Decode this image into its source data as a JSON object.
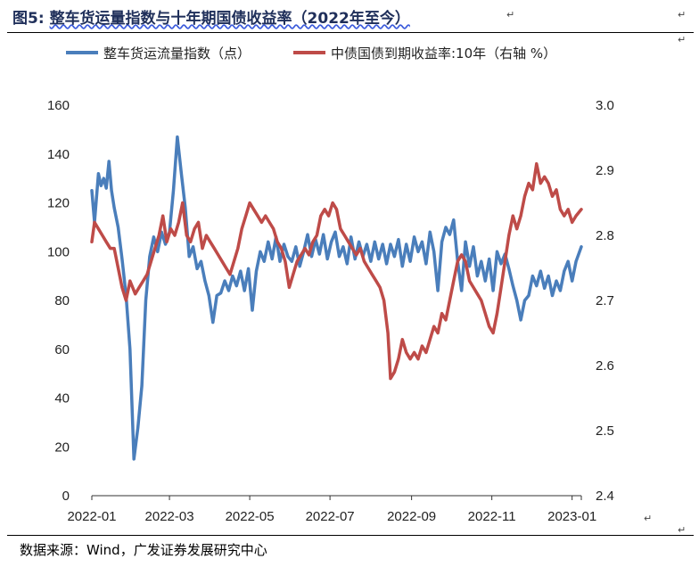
{
  "header": {
    "title_prefix": "图5:",
    "title_main": "整车货运量指数与十年期国债收益率（2022年至今）"
  },
  "footer": {
    "source": "数据来源：Wind，广发证券发展研究中心"
  },
  "marks": {
    "paragraph": "↵"
  },
  "chart_data": {
    "type": "line",
    "title": "整车货运量指数与十年期国债收益率（2022年至今）",
    "x_tick_labels": [
      "2022-01",
      "2022-03",
      "2022-05",
      "2022-07",
      "2022-09",
      "2022-11",
      "2023-01"
    ],
    "x_range": [
      "2022-01-01",
      "2023-01-08"
    ],
    "y_left": {
      "ticks": [
        0,
        20,
        40,
        60,
        80,
        100,
        120,
        140,
        160
      ],
      "range": [
        0,
        160
      ]
    },
    "y_right": {
      "ticks": [
        2.4,
        2.5,
        2.6,
        2.7,
        2.8,
        2.9,
        3.0
      ],
      "range": [
        2.4,
        3.0
      ]
    },
    "grid": false,
    "legend_position": "top",
    "colors": {
      "series1": "#4a7ebb",
      "series2": "#be4b48"
    },
    "series": [
      {
        "name": "整车货运流量指数（点）",
        "axis": "left",
        "points": [
          [
            "2022-01-01",
            125
          ],
          [
            "2022-01-03",
            112
          ],
          [
            "2022-01-06",
            132
          ],
          [
            "2022-01-08",
            127
          ],
          [
            "2022-01-10",
            130
          ],
          [
            "2022-01-12",
            126
          ],
          [
            "2022-01-14",
            137
          ],
          [
            "2022-01-16",
            125
          ],
          [
            "2022-01-18",
            118
          ],
          [
            "2022-01-21",
            110
          ],
          [
            "2022-01-24",
            97
          ],
          [
            "2022-01-27",
            82
          ],
          [
            "2022-01-30",
            60
          ],
          [
            "2022-02-02",
            15
          ],
          [
            "2022-02-05",
            28
          ],
          [
            "2022-02-08",
            45
          ],
          [
            "2022-02-11",
            80
          ],
          [
            "2022-02-14",
            98
          ],
          [
            "2022-02-17",
            106
          ],
          [
            "2022-02-20",
            100
          ],
          [
            "2022-02-23",
            108
          ],
          [
            "2022-02-26",
            103
          ],
          [
            "2022-03-01",
            108
          ],
          [
            "2022-03-04",
            125
          ],
          [
            "2022-03-07",
            147
          ],
          [
            "2022-03-10",
            132
          ],
          [
            "2022-03-13",
            118
          ],
          [
            "2022-03-16",
            98
          ],
          [
            "2022-03-19",
            102
          ],
          [
            "2022-03-22",
            93
          ],
          [
            "2022-03-25",
            96
          ],
          [
            "2022-03-28",
            88
          ],
          [
            "2022-03-31",
            82
          ],
          [
            "2022-04-03",
            71
          ],
          [
            "2022-04-06",
            82
          ],
          [
            "2022-04-09",
            83
          ],
          [
            "2022-04-12",
            88
          ],
          [
            "2022-04-15",
            84
          ],
          [
            "2022-04-18",
            90
          ],
          [
            "2022-04-21",
            86
          ],
          [
            "2022-04-24",
            92
          ],
          [
            "2022-04-27",
            84
          ],
          [
            "2022-04-30",
            93
          ],
          [
            "2022-05-03",
            76
          ],
          [
            "2022-05-06",
            92
          ],
          [
            "2022-05-09",
            100
          ],
          [
            "2022-05-12",
            96
          ],
          [
            "2022-05-15",
            104
          ],
          [
            "2022-05-18",
            97
          ],
          [
            "2022-05-21",
            106
          ],
          [
            "2022-05-24",
            96
          ],
          [
            "2022-05-27",
            103
          ],
          [
            "2022-05-30",
            98
          ],
          [
            "2022-06-02",
            96
          ],
          [
            "2022-06-05",
            102
          ],
          [
            "2022-06-08",
            94
          ],
          [
            "2022-06-11",
            100
          ],
          [
            "2022-06-14",
            107
          ],
          [
            "2022-06-17",
            98
          ],
          [
            "2022-06-20",
            105
          ],
          [
            "2022-06-23",
            99
          ],
          [
            "2022-06-26",
            107
          ],
          [
            "2022-06-29",
            97
          ],
          [
            "2022-07-02",
            104
          ],
          [
            "2022-07-05",
            108
          ],
          [
            "2022-07-08",
            98
          ],
          [
            "2022-07-11",
            102
          ],
          [
            "2022-07-14",
            95
          ],
          [
            "2022-07-17",
            106
          ],
          [
            "2022-07-20",
            97
          ],
          [
            "2022-07-23",
            104
          ],
          [
            "2022-07-26",
            98
          ],
          [
            "2022-07-29",
            103
          ],
          [
            "2022-08-01",
            96
          ],
          [
            "2022-08-04",
            104
          ],
          [
            "2022-08-07",
            97
          ],
          [
            "2022-08-10",
            103
          ],
          [
            "2022-08-13",
            95
          ],
          [
            "2022-08-16",
            103
          ],
          [
            "2022-08-19",
            98
          ],
          [
            "2022-08-22",
            105
          ],
          [
            "2022-08-25",
            94
          ],
          [
            "2022-08-28",
            103
          ],
          [
            "2022-08-31",
            96
          ],
          [
            "2022-09-03",
            106
          ],
          [
            "2022-09-06",
            100
          ],
          [
            "2022-09-09",
            104
          ],
          [
            "2022-09-12",
            95
          ],
          [
            "2022-09-15",
            108
          ],
          [
            "2022-09-18",
            100
          ],
          [
            "2022-09-21",
            84
          ],
          [
            "2022-09-24",
            104
          ],
          [
            "2022-09-27",
            110
          ],
          [
            "2022-09-30",
            107
          ],
          [
            "2022-10-03",
            113
          ],
          [
            "2022-10-06",
            96
          ],
          [
            "2022-10-09",
            84
          ],
          [
            "2022-10-12",
            104
          ],
          [
            "2022-10-15",
            94
          ],
          [
            "2022-10-18",
            102
          ],
          [
            "2022-10-21",
            90
          ],
          [
            "2022-10-24",
            96
          ],
          [
            "2022-10-27",
            88
          ],
          [
            "2022-10-30",
            97
          ],
          [
            "2022-11-02",
            84
          ],
          [
            "2022-11-05",
            100
          ],
          [
            "2022-11-08",
            95
          ],
          [
            "2022-11-11",
            99
          ],
          [
            "2022-11-14",
            93
          ],
          [
            "2022-11-17",
            86
          ],
          [
            "2022-11-20",
            80
          ],
          [
            "2022-11-23",
            72
          ],
          [
            "2022-11-26",
            80
          ],
          [
            "2022-11-29",
            82
          ],
          [
            "2022-12-02",
            90
          ],
          [
            "2022-12-05",
            86
          ],
          [
            "2022-12-08",
            92
          ],
          [
            "2022-12-11",
            85
          ],
          [
            "2022-12-14",
            90
          ],
          [
            "2022-12-17",
            82
          ],
          [
            "2022-12-20",
            88
          ],
          [
            "2022-12-23",
            84
          ],
          [
            "2022-12-26",
            92
          ],
          [
            "2022-12-29",
            96
          ],
          [
            "2023-01-01",
            88
          ],
          [
            "2023-01-04",
            96
          ],
          [
            "2023-01-08",
            102
          ]
        ]
      },
      {
        "name": "中债国债到期收益率:10年（右轴 %）",
        "axis": "right",
        "points": [
          [
            "2022-01-01",
            2.79
          ],
          [
            "2022-01-03",
            2.82
          ],
          [
            "2022-01-06",
            2.81
          ],
          [
            "2022-01-09",
            2.8
          ],
          [
            "2022-01-12",
            2.79
          ],
          [
            "2022-01-15",
            2.78
          ],
          [
            "2022-01-18",
            2.78
          ],
          [
            "2022-01-21",
            2.75
          ],
          [
            "2022-01-24",
            2.72
          ],
          [
            "2022-01-27",
            2.7
          ],
          [
            "2022-01-30",
            2.73
          ],
          [
            "2022-02-03",
            2.71
          ],
          [
            "2022-02-06",
            2.72
          ],
          [
            "2022-02-09",
            2.73
          ],
          [
            "2022-02-12",
            2.74
          ],
          [
            "2022-02-15",
            2.76
          ],
          [
            "2022-02-18",
            2.78
          ],
          [
            "2022-02-21",
            2.8
          ],
          [
            "2022-02-24",
            2.83
          ],
          [
            "2022-02-27",
            2.79
          ],
          [
            "2022-03-02",
            2.81
          ],
          [
            "2022-03-05",
            2.8
          ],
          [
            "2022-03-08",
            2.82
          ],
          [
            "2022-03-11",
            2.85
          ],
          [
            "2022-03-14",
            2.8
          ],
          [
            "2022-03-17",
            2.79
          ],
          [
            "2022-03-20",
            2.81
          ],
          [
            "2022-03-23",
            2.82
          ],
          [
            "2022-03-26",
            2.78
          ],
          [
            "2022-03-29",
            2.8
          ],
          [
            "2022-04-01",
            2.79
          ],
          [
            "2022-04-04",
            2.78
          ],
          [
            "2022-04-07",
            2.77
          ],
          [
            "2022-04-10",
            2.76
          ],
          [
            "2022-04-13",
            2.75
          ],
          [
            "2022-04-16",
            2.74
          ],
          [
            "2022-04-19",
            2.76
          ],
          [
            "2022-04-22",
            2.78
          ],
          [
            "2022-04-25",
            2.81
          ],
          [
            "2022-04-28",
            2.83
          ],
          [
            "2022-05-01",
            2.85
          ],
          [
            "2022-05-04",
            2.84
          ],
          [
            "2022-05-07",
            2.83
          ],
          [
            "2022-05-10",
            2.82
          ],
          [
            "2022-05-13",
            2.83
          ],
          [
            "2022-05-16",
            2.82
          ],
          [
            "2022-05-19",
            2.81
          ],
          [
            "2022-05-22",
            2.79
          ],
          [
            "2022-05-25",
            2.78
          ],
          [
            "2022-05-28",
            2.76
          ],
          [
            "2022-05-31",
            2.72
          ],
          [
            "2022-06-03",
            2.74
          ],
          [
            "2022-06-06",
            2.76
          ],
          [
            "2022-06-09",
            2.77
          ],
          [
            "2022-06-12",
            2.78
          ],
          [
            "2022-06-15",
            2.77
          ],
          [
            "2022-06-18",
            2.79
          ],
          [
            "2022-06-21",
            2.8
          ],
          [
            "2022-06-24",
            2.83
          ],
          [
            "2022-06-27",
            2.84
          ],
          [
            "2022-06-30",
            2.83
          ],
          [
            "2022-07-03",
            2.85
          ],
          [
            "2022-07-06",
            2.84
          ],
          [
            "2022-07-09",
            2.81
          ],
          [
            "2022-07-12",
            2.8
          ],
          [
            "2022-07-15",
            2.79
          ],
          [
            "2022-07-18",
            2.78
          ],
          [
            "2022-07-21",
            2.77
          ],
          [
            "2022-07-24",
            2.78
          ],
          [
            "2022-07-27",
            2.76
          ],
          [
            "2022-07-30",
            2.75
          ],
          [
            "2022-08-02",
            2.74
          ],
          [
            "2022-08-05",
            2.73
          ],
          [
            "2022-08-08",
            2.72
          ],
          [
            "2022-08-11",
            2.7
          ],
          [
            "2022-08-14",
            2.65
          ],
          [
            "2022-08-16",
            2.58
          ],
          [
            "2022-08-19",
            2.59
          ],
          [
            "2022-08-22",
            2.61
          ],
          [
            "2022-08-25",
            2.64
          ],
          [
            "2022-08-28",
            2.62
          ],
          [
            "2022-08-31",
            2.61
          ],
          [
            "2022-09-03",
            2.62
          ],
          [
            "2022-09-06",
            2.61
          ],
          [
            "2022-09-09",
            2.63
          ],
          [
            "2022-09-12",
            2.62
          ],
          [
            "2022-09-15",
            2.64
          ],
          [
            "2022-09-18",
            2.66
          ],
          [
            "2022-09-21",
            2.65
          ],
          [
            "2022-09-24",
            2.68
          ],
          [
            "2022-09-27",
            2.67
          ],
          [
            "2022-09-30",
            2.7
          ],
          [
            "2022-10-03",
            2.73
          ],
          [
            "2022-10-06",
            2.76
          ],
          [
            "2022-10-09",
            2.77
          ],
          [
            "2022-10-12",
            2.76
          ],
          [
            "2022-10-15",
            2.73
          ],
          [
            "2022-10-18",
            2.72
          ],
          [
            "2022-10-21",
            2.71
          ],
          [
            "2022-10-24",
            2.7
          ],
          [
            "2022-10-27",
            2.68
          ],
          [
            "2022-10-30",
            2.66
          ],
          [
            "2022-11-02",
            2.65
          ],
          [
            "2022-11-05",
            2.68
          ],
          [
            "2022-11-08",
            2.72
          ],
          [
            "2022-11-11",
            2.76
          ],
          [
            "2022-11-14",
            2.8
          ],
          [
            "2022-11-17",
            2.83
          ],
          [
            "2022-11-20",
            2.81
          ],
          [
            "2022-11-23",
            2.83
          ],
          [
            "2022-11-26",
            2.86
          ],
          [
            "2022-11-29",
            2.88
          ],
          [
            "2022-12-02",
            2.87
          ],
          [
            "2022-12-05",
            2.91
          ],
          [
            "2022-12-08",
            2.88
          ],
          [
            "2022-12-11",
            2.89
          ],
          [
            "2022-12-14",
            2.88
          ],
          [
            "2022-12-17",
            2.86
          ],
          [
            "2022-12-20",
            2.87
          ],
          [
            "2022-12-23",
            2.84
          ],
          [
            "2022-12-26",
            2.83
          ],
          [
            "2022-12-29",
            2.84
          ],
          [
            "2023-01-01",
            2.82
          ],
          [
            "2023-01-04",
            2.83
          ],
          [
            "2023-01-08",
            2.84
          ]
        ]
      }
    ]
  }
}
